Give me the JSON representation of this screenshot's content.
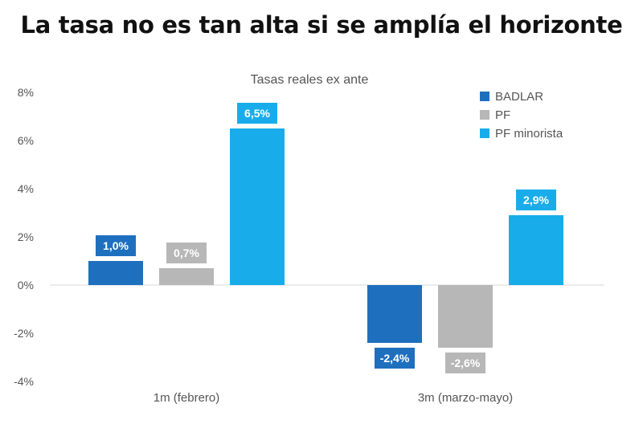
{
  "headline": "La tasa no es tan alta si se amplía el horizonte",
  "chart_data": {
    "type": "bar",
    "title": "Tasas reales ex ante",
    "categories": [
      "1m (febrero)",
      "3m (marzo-mayo)"
    ],
    "series": [
      {
        "name": "BADLAR",
        "color": "#1f6fbf",
        "values": [
          1.0,
          -2.4
        ],
        "labels": [
          "1,0%",
          "-2,4%"
        ]
      },
      {
        "name": "PF",
        "color": "#b7b7b7",
        "values": [
          0.7,
          -2.6
        ],
        "labels": [
          "0,7%",
          "-2,6%"
        ]
      },
      {
        "name": "PF minorista",
        "color": "#18adea",
        "values": [
          6.5,
          2.9
        ],
        "labels": [
          "6,5%",
          "2,9%"
        ]
      }
    ],
    "ylim": [
      -4,
      8
    ],
    "yticks": [
      8,
      6,
      4,
      2,
      0,
      -2,
      -4
    ],
    "ytick_labels": [
      "8%",
      "6%",
      "4%",
      "2%",
      "0%",
      "-2%",
      "-4%"
    ],
    "xlabel": "",
    "ylabel": "",
    "legend_position": "top-right",
    "grid": false
  }
}
